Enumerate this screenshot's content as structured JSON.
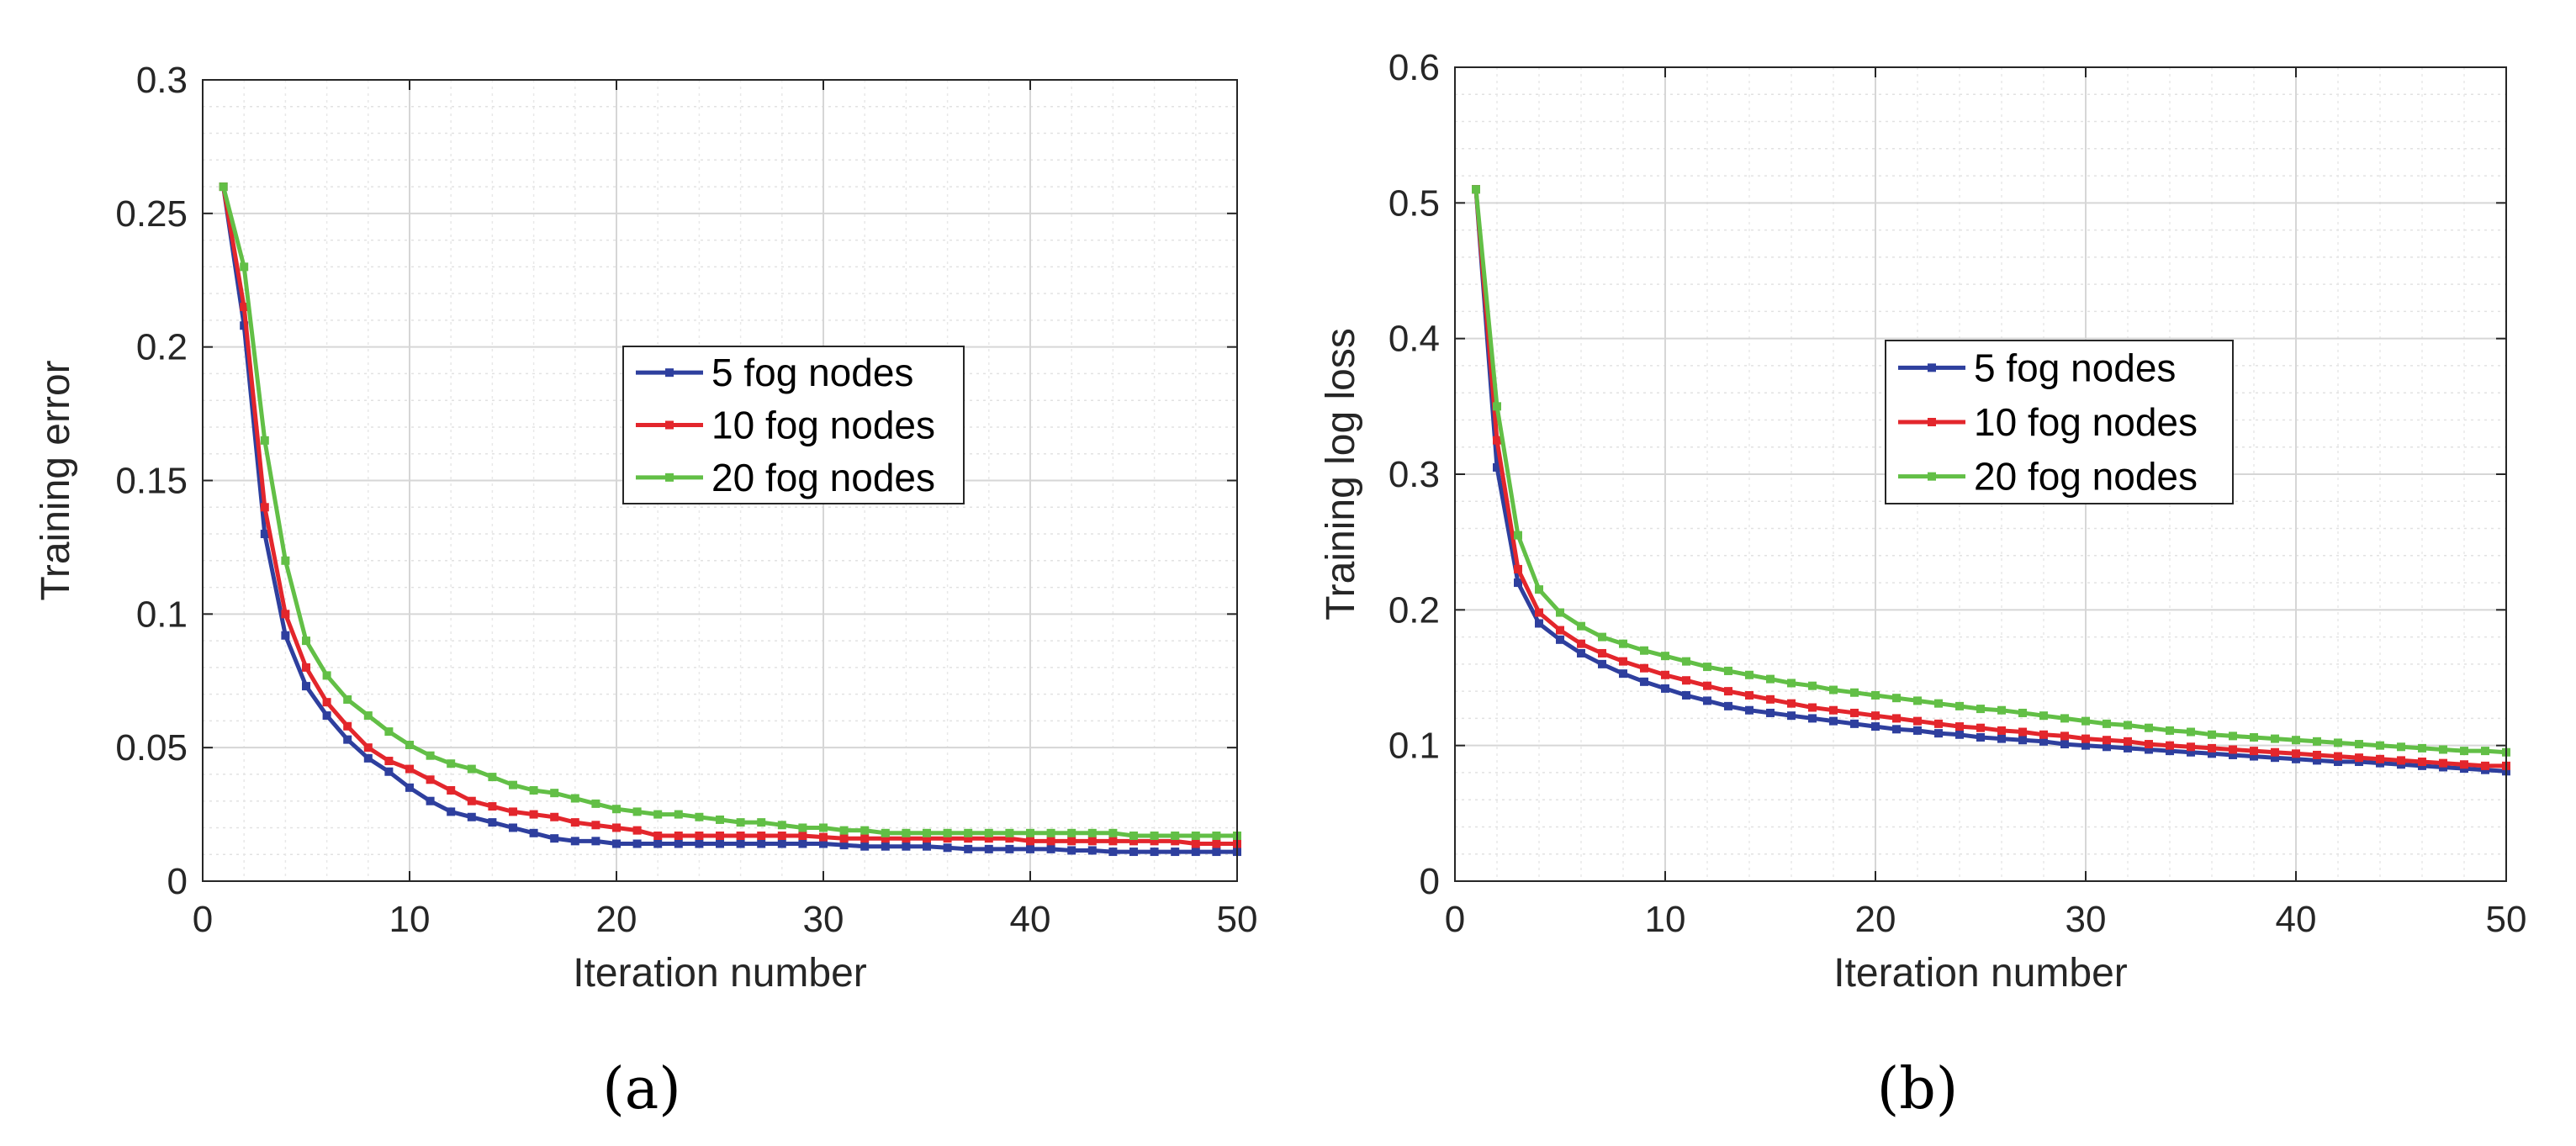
{
  "chart_data": [
    {
      "type": "line",
      "panel": "a",
      "caption": "(a)",
      "title": "",
      "xlabel": "Iteration number",
      "ylabel": "Training error",
      "xlim": [
        0,
        50
      ],
      "ylim": [
        0,
        0.3
      ],
      "xticks": [
        0,
        10,
        20,
        30,
        40,
        50
      ],
      "xtick_labels": [
        "0",
        "10",
        "20",
        "30",
        "40",
        "50"
      ],
      "yticks": [
        0,
        0.05,
        0.1,
        0.15,
        0.2,
        0.25,
        0.3
      ],
      "ytick_labels": [
        "0",
        "0.05",
        "0.1",
        "0.15",
        "0.2",
        "0.25",
        "0.3"
      ],
      "grid": true,
      "legend_position": "center",
      "x": [
        1,
        2,
        3,
        4,
        5,
        6,
        7,
        8,
        9,
        10,
        11,
        12,
        13,
        14,
        15,
        16,
        17,
        18,
        19,
        20,
        21,
        22,
        23,
        24,
        25,
        26,
        27,
        28,
        29,
        30,
        31,
        32,
        33,
        34,
        35,
        36,
        37,
        38,
        39,
        40,
        41,
        42,
        43,
        44,
        45,
        46,
        47,
        48,
        49,
        50
      ],
      "series": [
        {
          "name": "5 fog nodes",
          "color": "#2e3f9e",
          "values": [
            0.26,
            0.208,
            0.13,
            0.092,
            0.073,
            0.062,
            0.053,
            0.046,
            0.041,
            0.035,
            0.03,
            0.026,
            0.024,
            0.022,
            0.02,
            0.018,
            0.016,
            0.015,
            0.015,
            0.014,
            0.014,
            0.014,
            0.014,
            0.014,
            0.014,
            0.014,
            0.014,
            0.014,
            0.014,
            0.014,
            0.0135,
            0.013,
            0.013,
            0.013,
            0.013,
            0.0125,
            0.012,
            0.012,
            0.012,
            0.012,
            0.012,
            0.0115,
            0.0115,
            0.011,
            0.011,
            0.011,
            0.011,
            0.011,
            0.011,
            0.011
          ]
        },
        {
          "name": "10 fog nodes",
          "color": "#e3262c",
          "values": [
            0.26,
            0.215,
            0.14,
            0.1,
            0.08,
            0.067,
            0.058,
            0.05,
            0.045,
            0.042,
            0.038,
            0.034,
            0.03,
            0.028,
            0.026,
            0.025,
            0.024,
            0.022,
            0.021,
            0.02,
            0.019,
            0.017,
            0.017,
            0.017,
            0.017,
            0.017,
            0.017,
            0.017,
            0.017,
            0.0165,
            0.016,
            0.016,
            0.016,
            0.016,
            0.016,
            0.016,
            0.016,
            0.016,
            0.016,
            0.015,
            0.015,
            0.015,
            0.015,
            0.015,
            0.015,
            0.015,
            0.015,
            0.014,
            0.014,
            0.014
          ]
        },
        {
          "name": "20 fog nodes",
          "color": "#62bf46",
          "values": [
            0.26,
            0.23,
            0.165,
            0.12,
            0.09,
            0.077,
            0.068,
            0.062,
            0.056,
            0.051,
            0.047,
            0.044,
            0.042,
            0.039,
            0.036,
            0.034,
            0.033,
            0.031,
            0.029,
            0.027,
            0.026,
            0.025,
            0.025,
            0.024,
            0.023,
            0.022,
            0.022,
            0.021,
            0.02,
            0.02,
            0.019,
            0.019,
            0.018,
            0.018,
            0.018,
            0.018,
            0.018,
            0.018,
            0.018,
            0.018,
            0.018,
            0.018,
            0.018,
            0.018,
            0.017,
            0.017,
            0.017,
            0.017,
            0.017,
            0.017
          ]
        }
      ]
    },
    {
      "type": "line",
      "panel": "b",
      "caption": "(b)",
      "title": "",
      "xlabel": "Iteration number",
      "ylabel": "Training log loss",
      "xlim": [
        0,
        50
      ],
      "ylim": [
        0,
        0.6
      ],
      "xticks": [
        0,
        10,
        20,
        30,
        40,
        50
      ],
      "xtick_labels": [
        "0",
        "10",
        "20",
        "30",
        "40",
        "50"
      ],
      "yticks": [
        0,
        0.1,
        0.2,
        0.3,
        0.4,
        0.5,
        0.6
      ],
      "ytick_labels": [
        "0",
        "0.1",
        "0.2",
        "0.3",
        "0.4",
        "0.5",
        "0.6"
      ],
      "grid": true,
      "legend_position": "center",
      "x": [
        1,
        2,
        3,
        4,
        5,
        6,
        7,
        8,
        9,
        10,
        11,
        12,
        13,
        14,
        15,
        16,
        17,
        18,
        19,
        20,
        21,
        22,
        23,
        24,
        25,
        26,
        27,
        28,
        29,
        30,
        31,
        32,
        33,
        34,
        35,
        36,
        37,
        38,
        39,
        40,
        41,
        42,
        43,
        44,
        45,
        46,
        47,
        48,
        49,
        50
      ],
      "series": [
        {
          "name": "5 fog nodes",
          "color": "#2e3f9e",
          "values": [
            0.51,
            0.305,
            0.22,
            0.19,
            0.178,
            0.168,
            0.16,
            0.153,
            0.147,
            0.142,
            0.137,
            0.133,
            0.129,
            0.126,
            0.124,
            0.122,
            0.12,
            0.118,
            0.116,
            0.114,
            0.112,
            0.111,
            0.109,
            0.108,
            0.106,
            0.105,
            0.104,
            0.103,
            0.101,
            0.1,
            0.099,
            0.098,
            0.097,
            0.096,
            0.095,
            0.094,
            0.093,
            0.092,
            0.091,
            0.09,
            0.089,
            0.088,
            0.088,
            0.087,
            0.086,
            0.085,
            0.084,
            0.083,
            0.082,
            0.081
          ]
        },
        {
          "name": "10 fog nodes",
          "color": "#e3262c",
          "values": [
            0.51,
            0.325,
            0.23,
            0.198,
            0.185,
            0.175,
            0.168,
            0.162,
            0.157,
            0.152,
            0.148,
            0.144,
            0.14,
            0.137,
            0.134,
            0.131,
            0.128,
            0.126,
            0.124,
            0.122,
            0.12,
            0.118,
            0.116,
            0.114,
            0.113,
            0.111,
            0.11,
            0.108,
            0.107,
            0.105,
            0.104,
            0.103,
            0.101,
            0.1,
            0.099,
            0.098,
            0.097,
            0.096,
            0.095,
            0.094,
            0.093,
            0.092,
            0.091,
            0.09,
            0.089,
            0.088,
            0.087,
            0.086,
            0.085,
            0.085
          ]
        },
        {
          "name": "20 fog nodes",
          "color": "#62bf46",
          "values": [
            0.51,
            0.35,
            0.255,
            0.215,
            0.198,
            0.188,
            0.18,
            0.175,
            0.17,
            0.166,
            0.162,
            0.158,
            0.155,
            0.152,
            0.149,
            0.146,
            0.144,
            0.141,
            0.139,
            0.137,
            0.135,
            0.133,
            0.131,
            0.129,
            0.127,
            0.126,
            0.124,
            0.122,
            0.12,
            0.118,
            0.116,
            0.115,
            0.113,
            0.111,
            0.11,
            0.108,
            0.107,
            0.106,
            0.105,
            0.104,
            0.103,
            0.102,
            0.101,
            0.1,
            0.099,
            0.098,
            0.097,
            0.096,
            0.096,
            0.095
          ]
        }
      ]
    }
  ]
}
